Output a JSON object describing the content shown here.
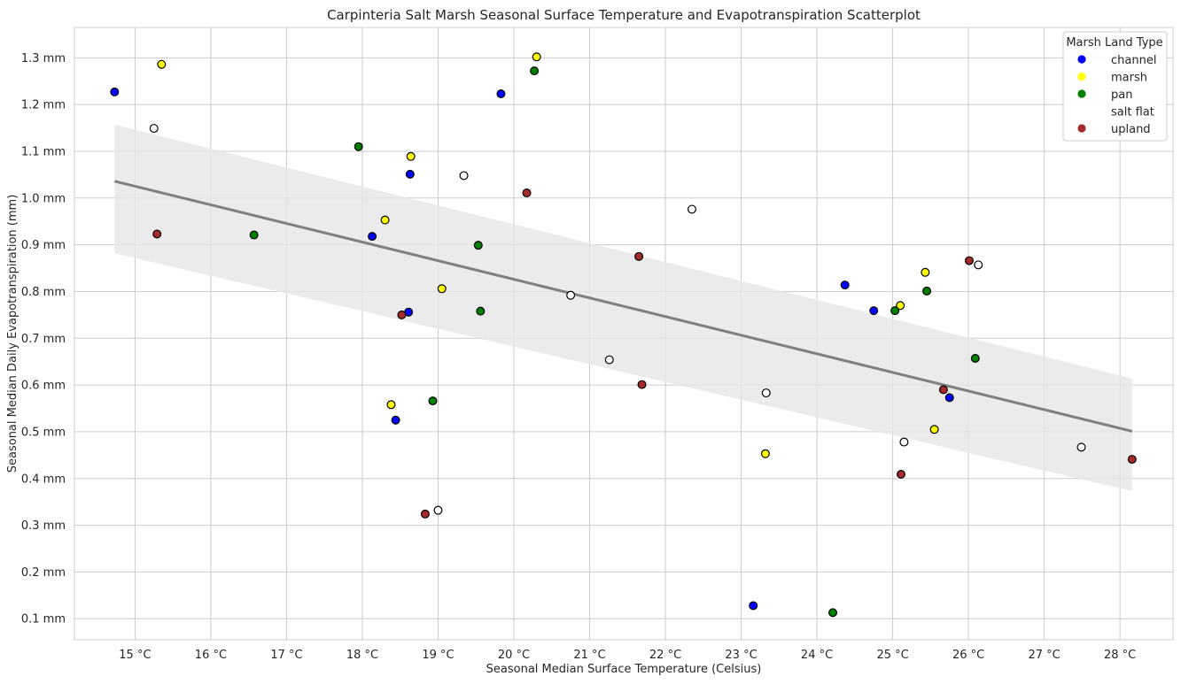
{
  "chart_data": {
    "type": "scatter",
    "title": "Carpinteria Salt Marsh Seasonal Surface Temperature and Evapotranspiration Scatterplot",
    "xlabel": "Seasonal Median Surface Temperature (Celsius)",
    "ylabel": "Seasonal Median Daily Evapotranspiration (mm)",
    "xlim": [
      14.2,
      28.7
    ],
    "ylim": [
      0.055,
      1.365
    ],
    "xticks": [
      15,
      16,
      17,
      18,
      19,
      20,
      21,
      22,
      23,
      24,
      25,
      26,
      27,
      28
    ],
    "xtick_labels": [
      "15 °C",
      "16 °C",
      "17 °C",
      "18 °C",
      "19 °C",
      "20 °C",
      "21 °C",
      "22 °C",
      "23 °C",
      "24 °C",
      "25 °C",
      "26 °C",
      "27 °C",
      "28 °C"
    ],
    "yticks": [
      0.1,
      0.2,
      0.3,
      0.4,
      0.5,
      0.6,
      0.7,
      0.8,
      0.9,
      1.0,
      1.1,
      1.2,
      1.3
    ],
    "ytick_labels": [
      "0.1 mm",
      "0.2 mm",
      "0.3 mm",
      "0.4 mm",
      "0.5 mm",
      "0.6 mm",
      "0.7 mm",
      "0.8 mm",
      "0.9 mm",
      "1.0 mm",
      "1.1 mm",
      "1.2 mm",
      "1.3 mm"
    ],
    "grid": true,
    "legend": {
      "title": "Marsh Land Type",
      "placement": "top-right"
    },
    "series": [
      {
        "name": "channel",
        "color": "#0000ff",
        "points": [
          [
            14.73,
            1.227
          ],
          [
            18.13,
            0.918
          ],
          [
            18.44,
            0.525
          ],
          [
            18.61,
            0.756
          ],
          [
            18.63,
            1.051
          ],
          [
            19.83,
            1.223
          ],
          [
            23.16,
            0.128
          ],
          [
            24.37,
            0.814
          ],
          [
            24.75,
            0.759
          ],
          [
            25.75,
            0.573
          ]
        ]
      },
      {
        "name": "marsh",
        "color": "#ffff00",
        "points": [
          [
            15.35,
            1.286
          ],
          [
            18.3,
            0.953
          ],
          [
            18.38,
            0.558
          ],
          [
            18.64,
            1.089
          ],
          [
            19.05,
            0.806
          ],
          [
            20.3,
            1.302
          ],
          [
            23.32,
            0.453
          ],
          [
            25.1,
            0.77
          ],
          [
            25.43,
            0.841
          ],
          [
            25.55,
            0.505
          ]
        ]
      },
      {
        "name": "pan",
        "color": "#008000",
        "points": [
          [
            16.57,
            0.921
          ],
          [
            17.95,
            1.11
          ],
          [
            18.93,
            0.566
          ],
          [
            19.53,
            0.899
          ],
          [
            19.56,
            0.758
          ],
          [
            20.27,
            1.272
          ],
          [
            24.21,
            0.113
          ],
          [
            25.03,
            0.759
          ],
          [
            25.45,
            0.801
          ],
          [
            26.09,
            0.657
          ]
        ]
      },
      {
        "name": "salt flat",
        "color": "#ffffff",
        "points": [
          [
            15.25,
            1.149
          ],
          [
            19.0,
            0.332
          ],
          [
            19.34,
            1.048
          ],
          [
            20.75,
            0.792
          ],
          [
            21.26,
            0.654
          ],
          [
            22.35,
            0.976
          ],
          [
            23.33,
            0.583
          ],
          [
            25.15,
            0.478
          ],
          [
            26.13,
            0.857
          ],
          [
            27.49,
            0.467
          ]
        ]
      },
      {
        "name": "upland",
        "color": "#a52a2a",
        "points": [
          [
            15.29,
            0.923
          ],
          [
            18.52,
            0.75
          ],
          [
            18.83,
            0.324
          ],
          [
            20.17,
            1.011
          ],
          [
            21.65,
            0.875
          ],
          [
            21.69,
            0.601
          ],
          [
            25.11,
            0.409
          ],
          [
            25.67,
            0.59
          ],
          [
            26.01,
            0.866
          ],
          [
            28.16,
            0.441
          ]
        ]
      }
    ],
    "regression": {
      "x": [
        14.73,
        28.16
      ],
      "y": [
        1.036,
        0.501
      ],
      "ci_lower": [
        0.882,
        0.373
      ],
      "ci_upper": [
        1.157,
        0.614
      ],
      "color": "#808080"
    }
  }
}
